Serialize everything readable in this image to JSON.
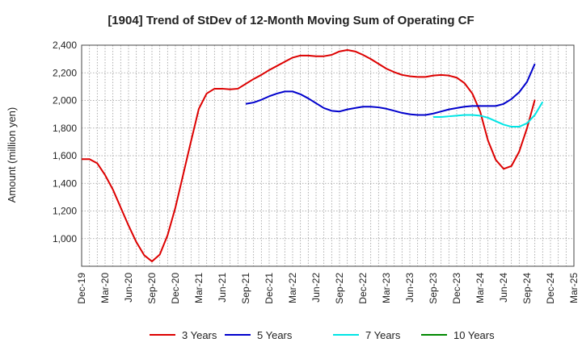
{
  "chart_data": {
    "type": "line",
    "title": "[1904]  Trend of StDev of 12-Month Moving Sum of Operating CF",
    "xlabel": "",
    "ylabel": "Amount (million yen)",
    "ylim": [
      800,
      2400
    ],
    "yticks": [
      1000,
      1200,
      1400,
      1600,
      1800,
      2000,
      2200,
      2400
    ],
    "ytick_labels": [
      "1,000",
      "1,200",
      "1,400",
      "1,600",
      "1,800",
      "2,000",
      "2,200",
      "2,400"
    ],
    "xticks": [
      "Dec-19",
      "Mar-20",
      "Jun-20",
      "Sep-20",
      "Dec-20",
      "Mar-21",
      "Jun-21",
      "Sep-21",
      "Dec-21",
      "Mar-22",
      "Jun-22",
      "Sep-22",
      "Dec-22",
      "Mar-23",
      "Jun-23",
      "Sep-23",
      "Dec-23",
      "Mar-24",
      "Jun-24",
      "Sep-24",
      "Dec-24",
      "Mar-25"
    ],
    "x_start": "Dec-19",
    "grid": true,
    "legend_position": "bottom",
    "series": [
      {
        "name": "3 Years",
        "color": "#dd0000",
        "start_index": 0,
        "values": [
          1575,
          1575,
          1545,
          1460,
          1355,
          1225,
          1095,
          975,
          880,
          835,
          885,
          1025,
          1225,
          1465,
          1705,
          1940,
          2050,
          2085,
          2085,
          2080,
          2085,
          2120,
          2155,
          2185,
          2220,
          2250,
          2280,
          2310,
          2325,
          2325,
          2320,
          2320,
          2330,
          2355,
          2365,
          2355,
          2330,
          2300,
          2265,
          2230,
          2205,
          2185,
          2175,
          2170,
          2170,
          2180,
          2185,
          2180,
          2165,
          2125,
          2050,
          1920,
          1710,
          1570,
          1505,
          1525,
          1630,
          1800,
          2005
        ]
      },
      {
        "name": "5 Years",
        "color": "#0000cc",
        "start_index": 21,
        "values": [
          1975,
          1985,
          2005,
          2030,
          2050,
          2065,
          2065,
          2045,
          2015,
          1980,
          1945,
          1925,
          1920,
          1935,
          1945,
          1955,
          1955,
          1950,
          1940,
          1925,
          1910,
          1900,
          1895,
          1895,
          1905,
          1920,
          1935,
          1945,
          1955,
          1960,
          1960,
          1960,
          1960,
          1975,
          2010,
          2060,
          2135,
          2265
        ]
      },
      {
        "name": "7 Years",
        "color": "#00e5e5",
        "start_index": 45,
        "values": [
          1880,
          1880,
          1885,
          1890,
          1895,
          1895,
          1890,
          1875,
          1850,
          1825,
          1810,
          1810,
          1835,
          1895,
          1990
        ]
      },
      {
        "name": "10 Years",
        "color": "#008800",
        "start_index": 0,
        "values": []
      }
    ]
  }
}
